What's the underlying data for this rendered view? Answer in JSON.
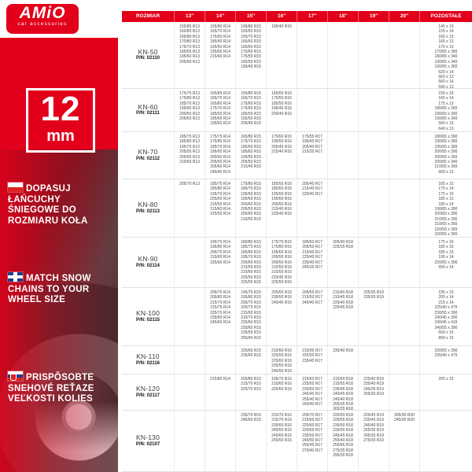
{
  "colors": {
    "accent_red": "#e2001a"
  },
  "logo": {
    "brand": "AMiO",
    "tagline": "car accessories"
  },
  "badge": {
    "size": "12",
    "unit": "mm"
  },
  "sidebar_messages": [
    {
      "flag": "poland-flag",
      "text": "Dopasuj łańcuchy śniegowe do rozmiaru koła"
    },
    {
      "flag": "uk-flag",
      "text": "Match snow chains to your wheel size"
    },
    {
      "flag": "slovakia-flag",
      "text": "Prispôsobte snehové reťaze veľkosti kolies"
    }
  ],
  "table": {
    "headers": [
      "ROZMIAR",
      "13\"",
      "14\"",
      "15\"",
      "16\"",
      "17\"",
      "18\"",
      "19\"",
      "20\"",
      "POZOSTAŁE"
    ],
    "rows": [
      {
        "model": "KN-50",
        "pn": "P/N: 02110",
        "cols": [
          [
            "155/85 R13",
            "160/80 R13",
            "165/80 R13",
            "170/80 R13",
            "175/70 R13",
            "185/65 R13",
            "195/60 R13",
            "205/50 R13"
          ],
          [
            "155/80 R14",
            "165/70 R14",
            "175/65 R14",
            "185/60 R14",
            "195/50 R14",
            "195/55 R14",
            "215/40 R14"
          ],
          [
            "145/80 R15",
            "155/65 R15",
            "155/70 R15",
            "165/60 R15",
            "165/65 R15",
            "170/60 R15",
            "175/55 R15",
            "185/50 R15",
            "195/45 R15"
          ],
          [
            "195/40 R16"
          ],
          [],
          [],
          [],
          [],
          [
            "145 x 15",
            "155 x 14",
            "160 x 13",
            "165 x 13",
            "170 x 13",
            "170/65 x 365",
            "180/65 x 340",
            "190/55 x 340",
            "190/55 x 365",
            "520 x 14",
            "560 x 13",
            "560 x 14",
            "590 x 13"
          ]
        ]
      },
      {
        "model": "KN-60",
        "pn": "P/N: 02111",
        "cols": [
          [
            "175/75 R13",
            "175/80 R13",
            "185/70 R13",
            "195/65 R13",
            "200/60 R13",
            "205/60 R13"
          ],
          [
            "155/85 R14",
            "165/75 R14",
            "165/80 R14",
            "175/70 R14",
            "185/55 R14",
            "185/65 R14",
            "195/60 R14"
          ],
          [
            "155/80 R15",
            "165/70 R15",
            "175/60 R15",
            "175/65 R15",
            "185/55 R15",
            "195/50 R15",
            "205/45 R15"
          ],
          [
            "165/55 R16",
            "175/55 R16",
            "185/50 R16",
            "195/45 R16",
            "205/40 R16"
          ],
          [],
          [],
          [],
          [],
          [
            "155 x 15",
            "165 x 14",
            "175 x 13",
            "180/65 x 365",
            "190/60 x 365",
            "190/65 x 340",
            "560 x 15",
            "640 x 13"
          ]
        ]
      },
      {
        "model": "KN-70",
        "pn": "P/N: 02112",
        "cols": [
          [
            "185/75 R13",
            "185/80 R13",
            "195/70 R13",
            "205/55 R13",
            "205/65 R13",
            "215/60 R13"
          ],
          [
            "175/75 R14",
            "175/80 R14",
            "185/70 R14",
            "195/65 R14",
            "200/60 R14",
            "205/55 R14",
            "205/60 R14",
            "245/40 R14"
          ],
          [
            "165/80 R15",
            "175/70 R15",
            "185/60 R15",
            "185/65 R15",
            "195/55 R15",
            "205/50 R15",
            "215/45 R15"
          ],
          [
            "175/60 R16",
            "195/50 R16",
            "205/45 R16",
            "215/40 R16"
          ],
          [
            "175/55 R17",
            "195/45 R17",
            "205/40 R17",
            "215/35 R17"
          ],
          [],
          [],
          [],
          [
            "180/65 x 390",
            "190/65 x 365",
            "195/60 x 365",
            "200/55 x 390",
            "200/60 x 365",
            "200/65 x 340",
            "210/55 x 365",
            "600 x 13"
          ]
        ]
      },
      {
        "model": "KN-80",
        "pn": "P/N: 02113",
        "cols": [
          [
            "205/70 R13"
          ],
          [
            "185/75 R14",
            "185/80 R14",
            "195/70 R14",
            "205/65 R14",
            "215/55 R14",
            "215/60 R14",
            "225/55 R14"
          ],
          [
            "175/80 R15",
            "185/70 R15",
            "195/60 R15",
            "195/65 R15",
            "200/60 R15",
            "205/55 R15",
            "205/60 R15",
            "215/50 R15"
          ],
          [
            "185/55 R16",
            "185/65 R16",
            "195/55 R16",
            "195/60 R16",
            "205/50 R16",
            "215/45 R16",
            "225/40 R16"
          ],
          [
            "205/45 R17",
            "215/40 R17",
            "225/40 R17"
          ],
          [],
          [],
          [],
          [
            "165 x 15",
            "175 x 14",
            "175 x 15",
            "185 x 13",
            "185 x 14",
            "190/65 x 390",
            "200/60 x 390",
            "210/55 x 390",
            "210/65 x 365",
            "220/50 x 365",
            "220/55 x 365"
          ]
        ]
      },
      {
        "model": "KN-90",
        "pn": "P/N: 02114",
        "cols": [
          [],
          [
            "195/75 R14",
            "195/80 R14",
            "205/70 R14",
            "215/65 R14",
            "225/60 R14"
          ],
          [
            "180/80 R15",
            "185/75 R15",
            "185/80 R15",
            "195/70 R15",
            "205/65 R15",
            "215/55 R15",
            "215/60 R15",
            "225/50 R15",
            "225/55 R15"
          ],
          [
            "175/75 R16",
            "175/80 R16",
            "195/65 R16",
            "205/55 R16",
            "205/60 R16",
            "215/50 R16",
            "215/55 R16",
            "225/45 R16",
            "225/50 R16"
          ],
          [
            "185/60 R17",
            "205/50 R17",
            "215/45 R17",
            "225/45 R17",
            "235/40 R17",
            "245/35 R17"
          ],
          [
            "205/40 R18",
            "225/35 R18"
          ],
          [],
          [],
          [
            "175 x 16",
            "180 x 15",
            "185 x 15",
            "195 x 14",
            "220/55 x 390",
            "600 x 14"
          ]
        ]
      },
      {
        "model": "KN-100",
        "pn": "P/N: 02115",
        "cols": [
          [],
          [
            "205/75 R14",
            "205/80 R14",
            "215/70 R14",
            "215/75 R14",
            "225/70 R14",
            "235/60 R14",
            "245/60 R14"
          ],
          [
            "195/75 R15",
            "195/80 R15",
            "205/70 R15",
            "205/75 R15",
            "215/65 R15",
            "215/70 R15",
            "225/60 R15",
            "230/60 R15",
            "235/55 R15",
            "255/45 R15"
          ],
          [
            "205/65 R16",
            "235/50 R16",
            "245/45 R16"
          ],
          [
            "205/55 R17",
            "215/50 R17",
            "245/40 R17"
          ],
          [
            "215/40 R18",
            "215/45 R18",
            "225/40 R18",
            "225/45 R18"
          ],
          [
            "225/35 R19",
            "235/35 R19"
          ],
          [],
          [
            "195 x 15",
            "205 x 14",
            "215 x 14",
            "225/40 x 475",
            "230/55 x 390",
            "240/45 x 390",
            "240/45 x 415",
            "240/55 x 390",
            "600 x 15",
            "890 x 15"
          ]
        ]
      },
      {
        "model": "KN-110",
        "pn": "P/N: 02116",
        "cols": [
          [],
          [],
          [
            "225/65 R15",
            "235/60 R15"
          ],
          [
            "215/60 R16",
            "225/55 R16",
            "225/60 R16",
            "235/55 R16",
            "245/50 R16"
          ],
          [
            "215/55 R17",
            "225/50 R17",
            "235/45 R17"
          ],
          [
            "235/40 R18"
          ],
          [],
          [],
          [
            "220/65 x 390",
            "235/40 x 475"
          ]
        ]
      },
      {
        "model": "KN-120",
        "pn": "P/N: 02117",
        "cols": [
          [],
          [
            "215/80 R14"
          ],
          [
            "205/80 R15",
            "215/75 R15",
            "225/70 R15"
          ],
          [
            "195/75 R16",
            "215/65 R16",
            "225/65 R16"
          ],
          [
            "215/60 R17",
            "225/55 R17",
            "235/50 R17",
            "245/45 R17",
            "255/40 R17",
            "265/40 R17"
          ],
          [
            "215/50 R18",
            "215/55 R18",
            "235/45 R18",
            "240/45 R18",
            "245/40 R18",
            "255/35 R18",
            "265/35 R18"
          ],
          [
            "225/40 R19",
            "235/40 R19",
            "245/35 R19",
            "255/30 R19"
          ],
          [],
          [
            "205 x 15"
          ]
        ]
      },
      {
        "model": "KN-130",
        "pn": "P/N: 02107",
        "cols": [
          [],
          [],
          [
            "235/70 R15",
            "245/60 R15"
          ],
          [
            "215/70 R16",
            "215/75 R16",
            "235/60 R16",
            "245/55 R16",
            "245/60 R16",
            "255/50 R16"
          ],
          [
            "205/70 R17",
            "215/65 R17",
            "225/60 R17",
            "225/65 R17",
            "235/55 R17",
            "245/50 R17",
            "255/45 R17",
            "275/40 R17"
          ],
          [
            "225/50 R18",
            "225/55 R18",
            "235/50 R18",
            "235/55 R18",
            "245/45 R18",
            "255/40 R18",
            "255/45 R18",
            "275/35 R18",
            "295/30 R18"
          ],
          [
            "225/45 R19",
            "235/45 R19",
            "245/40 R19",
            "255/35 R19",
            "265/35 R19",
            "275/30 R19"
          ],
          [
            "265/30 R20",
            "245/35 R20"
          ],
          []
        ]
      }
    ]
  }
}
